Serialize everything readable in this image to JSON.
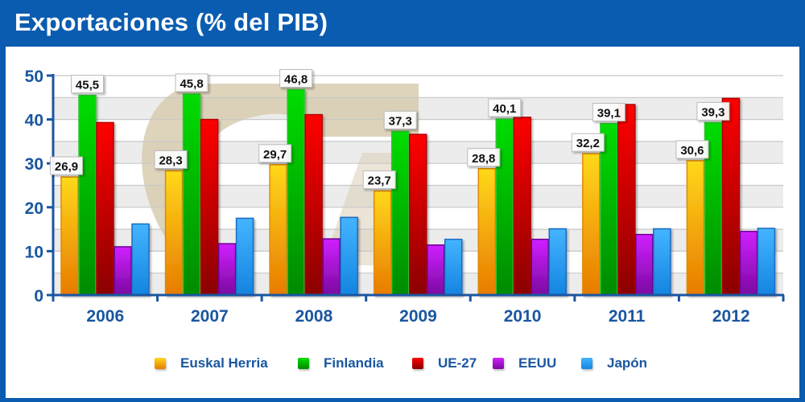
{
  "header": {
    "title": "Exportaciones (% del PIB)"
  },
  "colors": {
    "frame": "#0a5cb0",
    "axis": "#1a56a0",
    "band_light": "#ececec",
    "band_white": "#ffffff",
    "gridline": "#c8c8c8",
    "watermark": "#d8ccb0"
  },
  "chart_data": {
    "type": "bar",
    "title": "Exportaciones (% del PIB)",
    "xlabel": "",
    "ylabel": "",
    "ylim": [
      0,
      50
    ],
    "yticks": [
      0,
      10,
      20,
      30,
      40,
      50
    ],
    "ytick_labels": [
      "0",
      "10",
      "20",
      "30",
      "40",
      "50"
    ],
    "grid": true,
    "grid_step": 5,
    "legend_position": "bottom",
    "categories": [
      "2006",
      "2007",
      "2008",
      "2009",
      "2010",
      "2011",
      "2012"
    ],
    "series": [
      {
        "name": "Euskal Herria",
        "color_top": "#ffd81a",
        "color_bottom": "#e87b00",
        "border": "#e08a00",
        "values": [
          26.9,
          28.3,
          29.7,
          23.7,
          28.8,
          32.2,
          30.6
        ],
        "labels": [
          "26,9",
          "28,3",
          "29,7",
          "23,7",
          "28,8",
          "32,2",
          "30,6"
        ]
      },
      {
        "name": "Finlandia",
        "color_top": "#00dd00",
        "color_bottom": "#008a00",
        "border": "#33c433",
        "values": [
          45.5,
          45.8,
          46.8,
          37.3,
          40.1,
          39.1,
          39.3
        ],
        "labels": [
          "45,5",
          "45,8",
          "46,8",
          "37,3",
          "40,1",
          "39,1",
          "39,3"
        ]
      },
      {
        "name": "UE-27",
        "color_top": "#ff0000",
        "color_bottom": "#8a0000",
        "border": "#b00000",
        "values": [
          39.3,
          40.0,
          41.1,
          36.6,
          40.5,
          43.4,
          44.8
        ],
        "labels": null
      },
      {
        "name": "EEUU",
        "color_top": "#d020ff",
        "color_bottom": "#7a0aa0",
        "border": "#6a0090",
        "values": [
          11.0,
          11.7,
          12.8,
          11.4,
          12.7,
          13.8,
          14.5
        ],
        "labels": null
      },
      {
        "name": "Japón",
        "color_top": "#44b4ff",
        "color_bottom": "#1484e0",
        "border": "#1a6cc0",
        "values": [
          16.2,
          17.5,
          17.7,
          12.7,
          15.1,
          15.1,
          15.2
        ],
        "labels": null
      }
    ]
  }
}
